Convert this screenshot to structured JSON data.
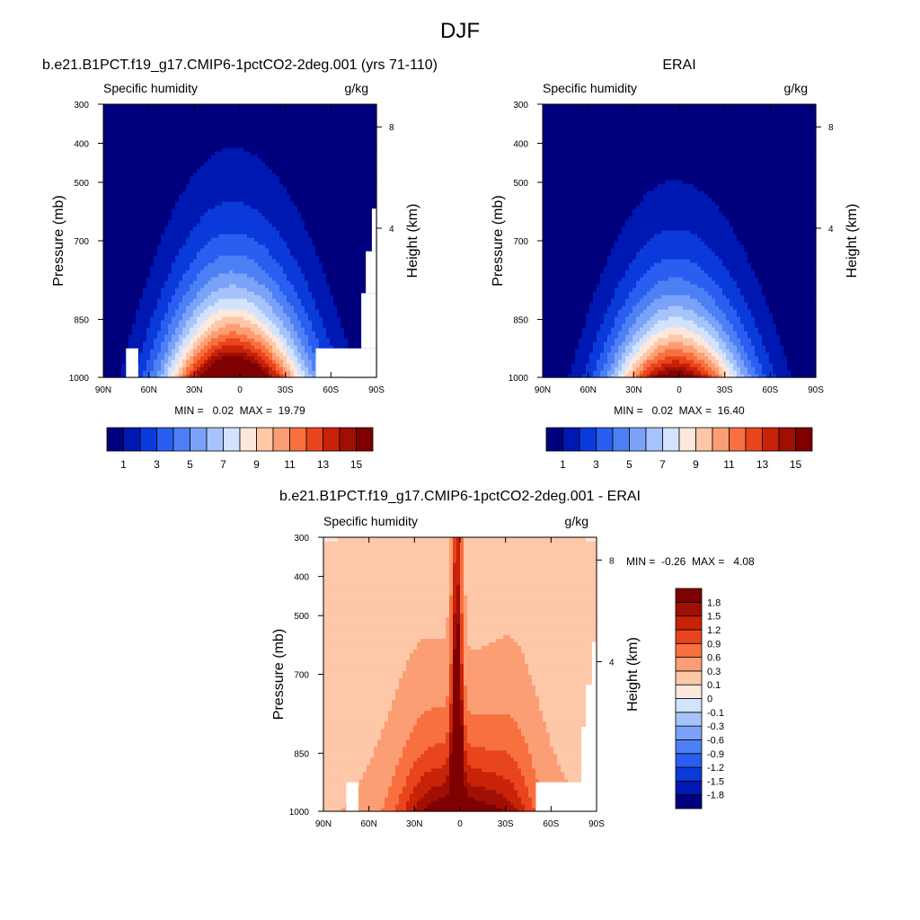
{
  "page_title": "DJF",
  "chart_data": [
    {
      "type": "heatmap",
      "title": "b.e21.B1PCT.f19_g17.CMIP6-1pctCO2-2deg.001 (yrs 71-110)",
      "left_label": "Specific humidity",
      "right_label": "g/kg",
      "ylabel": "Pressure (mb)",
      "ylabel_right": "Height (km)",
      "x_ticks": [
        "90N",
        "60N",
        "30N",
        "0",
        "30S",
        "60S",
        "90S"
      ],
      "y_ticks": [
        "300",
        "400",
        "500",
        "700",
        "850",
        "1000"
      ],
      "y_right_ticks": [
        "8",
        "4"
      ],
      "xlim": [
        90,
        -90
      ],
      "ylim": [
        1000,
        300
      ],
      "stats_text": "MIN =   0.02  MAX =  19.79",
      "min": 0.02,
      "max": 19.79,
      "peak_level": 16,
      "field_params": {
        "amp": 19.79,
        "xc": 5,
        "sigma": 32,
        "H": 175,
        "skew": 0.1
      },
      "colorbar": {
        "orientation": "horizontal",
        "levels": [
          1,
          2,
          3,
          4,
          5,
          6,
          7,
          8,
          9,
          10,
          11,
          12,
          13,
          14,
          15
        ],
        "tick_labels": [
          "1",
          "3",
          "5",
          "7",
          "9",
          "11",
          "13",
          "15"
        ],
        "colors": [
          "#00007f",
          "#0018b2",
          "#0a3ad9",
          "#2a5ef0",
          "#4d80f5",
          "#7aa2f8",
          "#a6c4fb",
          "#d3e3fd",
          "#fde8dc",
          "#fdc7a8",
          "#fc9e74",
          "#f8703f",
          "#e8451d",
          "#c82208",
          "#a00f04",
          "#7f0000"
        ]
      },
      "missing_regions": [
        {
          "x": [
            75,
            67
          ],
          "p": [
            1000,
            925
          ]
        },
        {
          "x": [
            -50,
            -90
          ],
          "p": [
            1000,
            925
          ]
        },
        {
          "x": [
            -80,
            -90
          ],
          "p": [
            925,
            800
          ]
        },
        {
          "x": [
            -83,
            -90
          ],
          "p": [
            800,
            720
          ]
        },
        {
          "x": [
            -87,
            -90
          ],
          "p": [
            720,
            590
          ]
        }
      ]
    },
    {
      "type": "heatmap",
      "title": "ERAI",
      "left_label": "Specific humidity",
      "right_label": "g/kg",
      "ylabel": "Pressure (mb)",
      "ylabel_right": "Height (km)",
      "x_ticks": [
        "90N",
        "60N",
        "30N",
        "0",
        "30S",
        "60S",
        "90S"
      ],
      "y_ticks": [
        "300",
        "400",
        "500",
        "700",
        "850",
        "1000"
      ],
      "y_right_ticks": [
        "8",
        "4"
      ],
      "xlim": [
        90,
        -90
      ],
      "ylim": [
        1000,
        300
      ],
      "stats_text": "MIN =   0.02  MAX =  16.40",
      "min": 0.02,
      "max": 16.4,
      "peak_level": 16,
      "field_params": {
        "amp": 16.4,
        "xc": 3,
        "sigma": 31,
        "H": 160,
        "skew": 0.1
      },
      "colorbar": {
        "orientation": "horizontal",
        "levels": [
          1,
          2,
          3,
          4,
          5,
          6,
          7,
          8,
          9,
          10,
          11,
          12,
          13,
          14,
          15
        ],
        "tick_labels": [
          "1",
          "3",
          "5",
          "7",
          "9",
          "11",
          "13",
          "15"
        ],
        "colors": [
          "#00007f",
          "#0018b2",
          "#0a3ad9",
          "#2a5ef0",
          "#4d80f5",
          "#7aa2f8",
          "#a6c4fb",
          "#d3e3fd",
          "#fde8dc",
          "#fdc7a8",
          "#fc9e74",
          "#f8703f",
          "#e8451d",
          "#c82208",
          "#a00f04",
          "#7f0000"
        ]
      },
      "missing_regions": []
    },
    {
      "type": "heatmap",
      "title": "b.e21.B1PCT.f19_g17.CMIP6-1pctCO2-2deg.001 - ERAI",
      "left_label": "Specific humidity",
      "right_label": "g/kg",
      "ylabel": "Pressure (mb)",
      "ylabel_right": "Height (km)",
      "x_ticks": [
        "90N",
        "60N",
        "30N",
        "0",
        "30S",
        "60S",
        "90S"
      ],
      "y_ticks": [
        "300",
        "400",
        "500",
        "700",
        "850",
        "1000"
      ],
      "y_right_ticks": [
        "8",
        "4"
      ],
      "xlim": [
        90,
        -90
      ],
      "ylim": [
        1000,
        300
      ],
      "stats_text": "MIN =  -0.26  MAX =   4.08",
      "min": -0.26,
      "max": 4.08,
      "peak_level": 1.8,
      "colorbar": {
        "orientation": "vertical",
        "levels": [
          -1.8,
          -1.5,
          -1.2,
          -0.9,
          -0.6,
          -0.3,
          -0.1,
          0,
          0.1,
          0.3,
          0.6,
          0.9,
          1.2,
          1.5,
          1.8
        ],
        "tick_labels": [
          "-1.8",
          "-1.5",
          "-1.2",
          "-0.9",
          "-0.6",
          "-0.3",
          "-0.1",
          "0",
          "0.1",
          "0.3",
          "0.6",
          "0.9",
          "1.2",
          "1.5",
          "1.8"
        ],
        "colors": [
          "#00007f",
          "#0018b2",
          "#0a3ad9",
          "#2a5ef0",
          "#4d80f5",
          "#7aa2f8",
          "#a6c4fb",
          "#d3e3fd",
          "#fde8dc",
          "#fdc7a8",
          "#fc9e74",
          "#f8703f",
          "#e8451d",
          "#c82208",
          "#a00f04",
          "#7f0000"
        ]
      },
      "missing_regions": [
        {
          "x": [
            75,
            67
          ],
          "p": [
            1000,
            925
          ]
        },
        {
          "x": [
            -50,
            -90
          ],
          "p": [
            1000,
            925
          ]
        },
        {
          "x": [
            -80,
            -90
          ],
          "p": [
            925,
            800
          ]
        },
        {
          "x": [
            -83,
            -90
          ],
          "p": [
            800,
            720
          ]
        },
        {
          "x": [
            -87,
            -90
          ],
          "p": [
            720,
            590
          ]
        }
      ]
    }
  ]
}
